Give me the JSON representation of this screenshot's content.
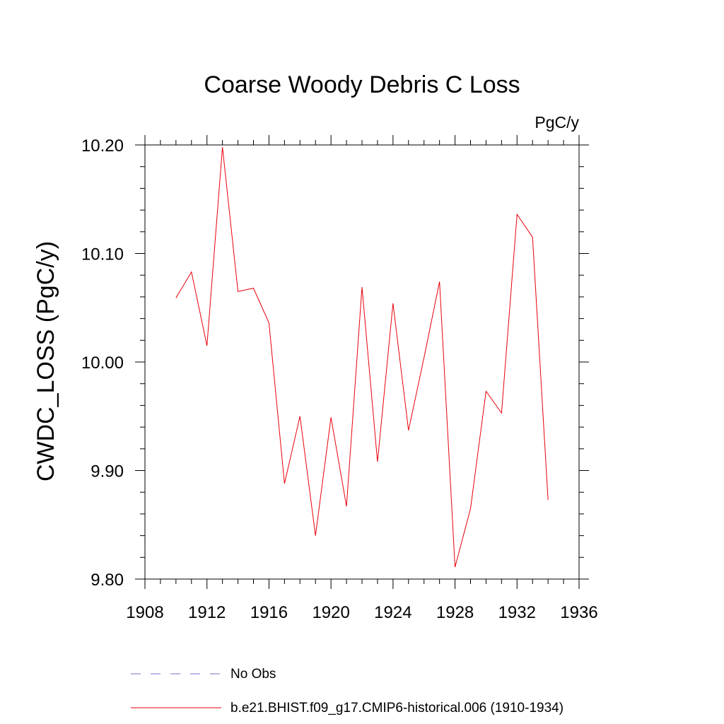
{
  "chart_data": {
    "type": "line",
    "title": "Coarse Woody Debris C Loss",
    "units_label": "PgC/y",
    "ylabel": "CWDC_LOSS  (PgC/y)",
    "xlabel": "",
    "xlim": [
      1908,
      1936
    ],
    "ylim": [
      9.8,
      10.2
    ],
    "x_ticks": [
      1908,
      1912,
      1916,
      1920,
      1924,
      1928,
      1932,
      1936
    ],
    "x_tick_labels": [
      "1908",
      "1912",
      "1916",
      "1920",
      "1924",
      "1928",
      "1932",
      "1936"
    ],
    "y_ticks": [
      9.8,
      9.9,
      10.0,
      10.1,
      10.2
    ],
    "y_tick_labels": [
      "9.80",
      "9.90",
      "10.00",
      "10.10",
      "10.20"
    ],
    "grid": false,
    "legend_position": "bottom",
    "series": [
      {
        "name": "b.e21.BHIST.f09_g17.CMIP6-historical.006 (1910-1934)",
        "color": "#e8000b",
        "x": [
          1910,
          1911,
          1912,
          1913,
          1914,
          1915,
          1916,
          1917,
          1918,
          1919,
          1920,
          1921,
          1922,
          1923,
          1924,
          1925,
          1926,
          1927,
          1928,
          1929,
          1930,
          1931,
          1932,
          1933,
          1934
        ],
        "y": [
          10.059,
          10.083,
          10.015,
          10.198,
          10.065,
          10.068,
          10.036,
          9.888,
          9.95,
          9.84,
          9.949,
          9.867,
          10.069,
          9.908,
          10.054,
          9.937,
          10.004,
          10.074,
          9.811,
          9.865,
          9.973,
          9.953,
          10.136,
          10.115,
          9.873
        ]
      }
    ],
    "legend": [
      {
        "label": "No Obs",
        "style": "dashed",
        "color": "#7b6fc4"
      },
      {
        "label": "b.e21.BHIST.f09_g17.CMIP6-historical.006 (1910-1934)",
        "style": "solid",
        "color": "#e8000b"
      }
    ]
  }
}
